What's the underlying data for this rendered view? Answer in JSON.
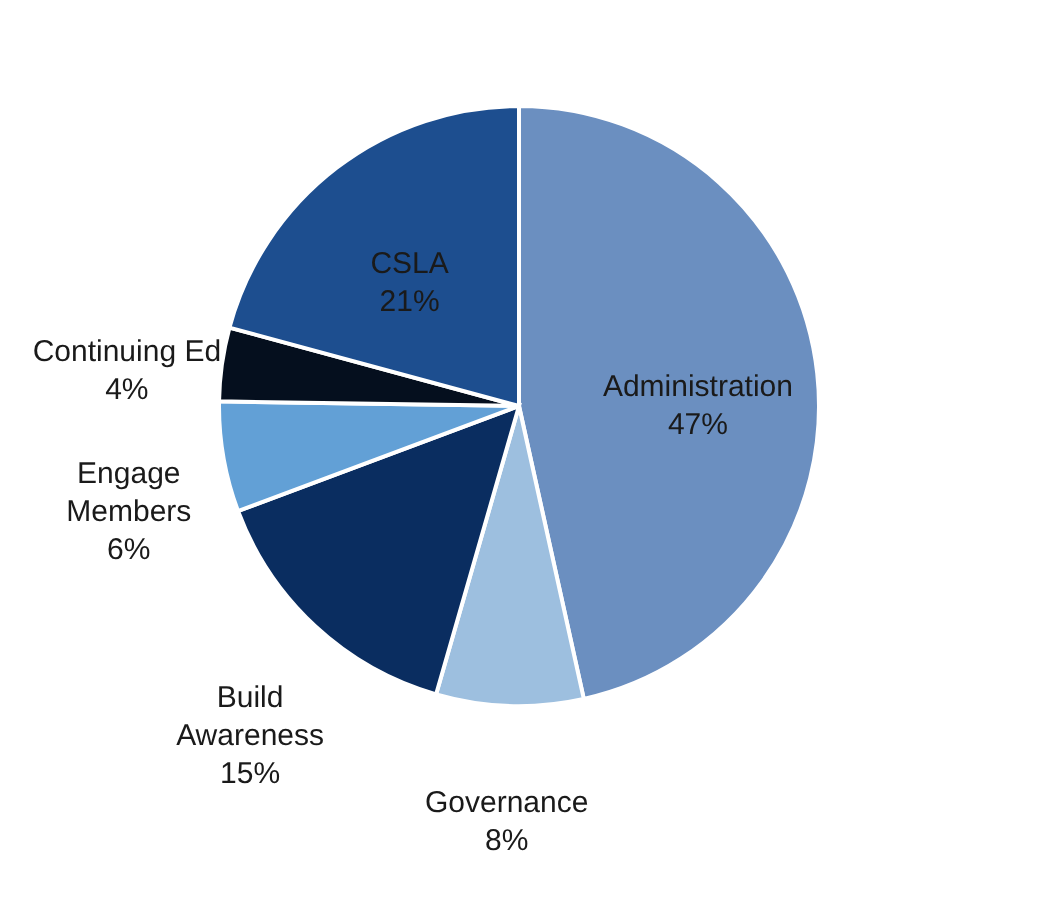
{
  "chart_data": {
    "type": "pie",
    "categories": [
      "Administration",
      "Governance",
      "Build Awareness",
      "Engage Members",
      "Continuing Ed",
      "CSLA"
    ],
    "values": [
      47,
      8,
      15,
      6,
      4,
      21
    ],
    "value_labels": [
      "47%",
      "8%",
      "15%",
      "6%",
      "4%",
      "21%"
    ],
    "colors": [
      "#6b8fc0",
      "#9dbfdf",
      "#0a2d60",
      "#62a0d6",
      "#050f1e",
      "#1d4e8f"
    ]
  }
}
